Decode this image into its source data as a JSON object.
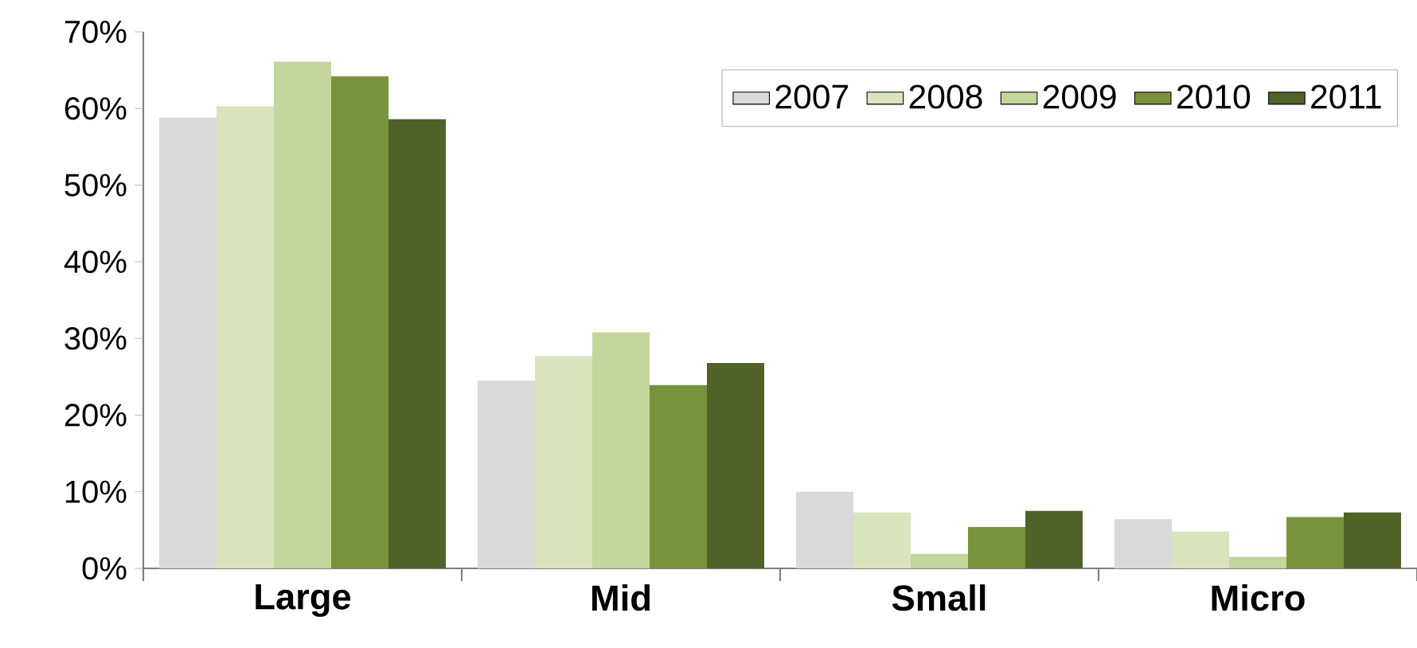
{
  "chart_data": {
    "type": "bar",
    "categories": [
      "Large",
      "Mid",
      "Small",
      "Micro"
    ],
    "series": [
      {
        "name": "2007",
        "color": "#d9d9d9",
        "values": [
          58.8,
          24.5,
          10.0,
          6.4
        ]
      },
      {
        "name": "2008",
        "color": "#d8e4bc",
        "values": [
          60.3,
          27.7,
          7.3,
          4.8
        ]
      },
      {
        "name": "2009",
        "color": "#c3d69b",
        "values": [
          66.1,
          30.8,
          1.9,
          1.5
        ]
      },
      {
        "name": "2010",
        "color": "#77933c",
        "values": [
          64.2,
          23.9,
          5.4,
          6.7
        ]
      },
      {
        "name": "2011",
        "color": "#4f6228",
        "values": [
          58.6,
          26.8,
          7.5,
          7.3
        ]
      }
    ],
    "ylim": [
      0,
      70
    ],
    "yticks": [
      {
        "value": 0,
        "label": "0%"
      },
      {
        "value": 10,
        "label": "10%"
      },
      {
        "value": 20,
        "label": "20%"
      },
      {
        "value": 30,
        "label": "30%"
      },
      {
        "value": 40,
        "label": "40%"
      },
      {
        "value": 50,
        "label": "50%"
      },
      {
        "value": 60,
        "label": "60%"
      },
      {
        "value": 70,
        "label": "70%"
      }
    ],
    "grid": false,
    "legend": "top right"
  }
}
